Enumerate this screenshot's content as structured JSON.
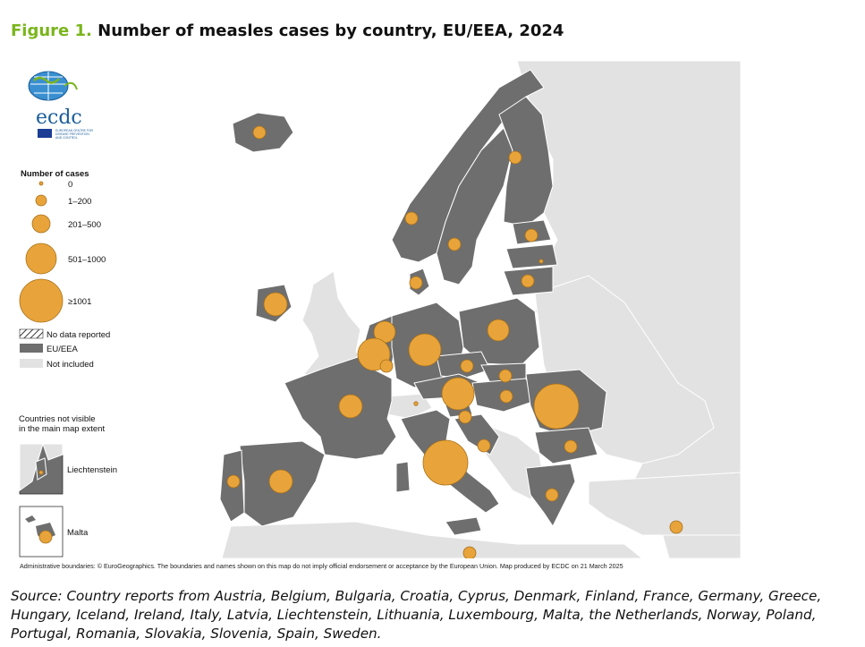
{
  "figure": {
    "label": "Figure 1.",
    "title": "Number of measles cases by country, EU/EEA, 2024"
  },
  "logo": {
    "text": "ecdc",
    "subtitle_lines": [
      "EUROPEAN CENTRE FOR",
      "DISEASE PREVENTION",
      "AND CONTROL"
    ]
  },
  "legend": {
    "title": "Number of cases",
    "size_classes": [
      {
        "label": "0",
        "radius": 2
      },
      {
        "label": "1–200",
        "radius": 6
      },
      {
        "label": "201–500",
        "radius": 10
      },
      {
        "label": "501–1000",
        "radius": 17
      },
      {
        "label": "≥1001",
        "radius": 24
      }
    ],
    "fill_classes": [
      {
        "label": "No data reported",
        "pattern": "hatched"
      },
      {
        "label": "EU/EEA",
        "color": "#6e6e6e"
      },
      {
        "label": "Not included",
        "color": "#e2e2e2"
      }
    ]
  },
  "insets": {
    "heading_lines": [
      "Countries not visible",
      "in the main map extent"
    ],
    "items": [
      {
        "label": "Liechtenstein"
      },
      {
        "label": "Malta"
      }
    ]
  },
  "colors": {
    "eu_eea": "#6e6e6e",
    "not_included": "#e2e2e2",
    "bubble": "#e8a43a",
    "bubble_stroke": "#a8701a",
    "border": "#ffffff",
    "title_accent": "#7ab51d"
  },
  "map_data": {
    "type": "proportional-symbol",
    "bubbles": [
      {
        "country": "Iceland",
        "class": "1–200"
      },
      {
        "country": "Ireland",
        "class": "201–500"
      },
      {
        "country": "Norway",
        "class": "1–200"
      },
      {
        "country": "Sweden",
        "class": "1–200"
      },
      {
        "country": "Finland",
        "class": "1–200"
      },
      {
        "country": "Estonia",
        "class": "1–200"
      },
      {
        "country": "Latvia",
        "class": "0"
      },
      {
        "country": "Lithuania",
        "class": "1–200"
      },
      {
        "country": "Denmark",
        "class": "1–200"
      },
      {
        "country": "Netherlands",
        "class": "201–500"
      },
      {
        "country": "Belgium",
        "class": "501–1000"
      },
      {
        "country": "Luxembourg",
        "class": "1–200"
      },
      {
        "country": "Germany",
        "class": "501–1000"
      },
      {
        "country": "Poland",
        "class": "201–500"
      },
      {
        "country": "Czechia",
        "class": "1–200"
      },
      {
        "country": "Slovakia",
        "class": "1–200"
      },
      {
        "country": "Austria",
        "class": "501–1000"
      },
      {
        "country": "Hungary",
        "class": "1–200"
      },
      {
        "country": "Romania",
        "class": "≥1001"
      },
      {
        "country": "France",
        "class": "201–500"
      },
      {
        "country": "Switzerland",
        "class": "0"
      },
      {
        "country": "Slovenia",
        "class": "1–200"
      },
      {
        "country": "Croatia",
        "class": "1–200"
      },
      {
        "country": "Italy",
        "class": "≥1001"
      },
      {
        "country": "Bulgaria",
        "class": "1–200"
      },
      {
        "country": "Greece",
        "class": "1–200"
      },
      {
        "country": "Spain",
        "class": "201–500"
      },
      {
        "country": "Portugal",
        "class": "1–200"
      },
      {
        "country": "Malta",
        "class": "1–200"
      },
      {
        "country": "Cyprus",
        "class": "1–200"
      }
    ]
  },
  "admin_note": "Administrative boundaries: © EuroGeographics. The boundaries and names shown on this map do not imply official endorsement or acceptance by the European Union. Map produced by ECDC on 21 March 2025",
  "source": "Source: Country reports from Austria, Belgium, Bulgaria, Croatia, Cyprus, Denmark, Finland, France, Germany, Greece, Hungary, Iceland, Ireland, Italy, Latvia, Liechtenstein, Lithuania, Luxembourg, Malta, the Netherlands, Norway, Poland, Portugal, Romania, Slovakia, Slovenia, Spain, Sweden."
}
